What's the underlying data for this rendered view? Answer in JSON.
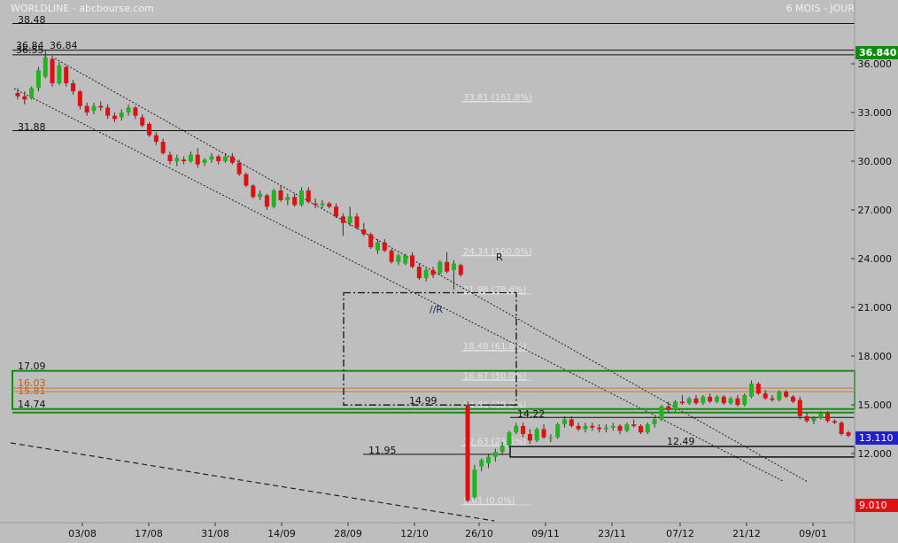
{
  "header": {
    "title": "WORLDLINE - abcbourse.com",
    "period": "6 MOIS - JOUR"
  },
  "colors": {
    "background": "#bebebe",
    "up": "#1fb51f",
    "down": "#e01010",
    "zone": "#148c14",
    "orange": "#d07a2a",
    "price_badge": "#0f8c0f",
    "low_badge": "#dd1111"
  },
  "chart_data": {
    "type": "candlestick",
    "ylim": [
      9.0,
      38.6
    ],
    "y_ticks": [
      "36.000",
      "33.000",
      "30.000",
      "27.000",
      "24.000",
      "21.000",
      "18.000",
      "15.000",
      "12.000"
    ],
    "x_ticks": [
      "03/08",
      "17/08",
      "31/08",
      "14/09",
      "28/09",
      "12/10",
      "26/10",
      "09/11",
      "23/11",
      "07/12",
      "21/12",
      "09/01"
    ],
    "last_price": "36.840",
    "current_price": "13.110",
    "low_price": "9.010",
    "levels": {
      "top": "38.48",
      "l1": "36.84",
      "l2": "36.55",
      "l3": "31.88",
      "zone_top": "17.09",
      "orange_1": "16.03",
      "orange_2": "15.81",
      "zone_bottom": "14.74",
      "h1499": "14.99",
      "h1422": "14.22",
      "h1249": "12.49",
      "h1195": "11.95"
    },
    "fib_labels": [
      "33.81 (161.8%)",
      "24.34 (100.0%)",
      "21.98 (78.6%)",
      "18.48 (61.8%)",
      "16.67 (50.0%)",
      "14.86 (38.2%)",
      "12.63 (23.6%)",
      "9.01 (0.0%)"
    ],
    "fib_values": [
      33.81,
      24.34,
      21.98,
      18.48,
      16.67,
      14.86,
      12.63,
      9.01
    ],
    "annotations": {
      "resistance": "R",
      "parallel": "//R"
    },
    "candles": [
      [
        34.2,
        34.5,
        33.8,
        34.0
      ],
      [
        34.0,
        34.3,
        33.5,
        33.8
      ],
      [
        33.9,
        34.6,
        33.8,
        34.5
      ],
      [
        34.5,
        35.8,
        34.3,
        35.6
      ],
      [
        35.2,
        36.8,
        35.1,
        36.4
      ],
      [
        36.3,
        36.5,
        34.6,
        34.8
      ],
      [
        34.8,
        36.1,
        34.7,
        35.9
      ],
      [
        35.8,
        35.9,
        34.6,
        34.8
      ],
      [
        34.8,
        35.0,
        34.1,
        34.3
      ],
      [
        34.3,
        34.4,
        33.2,
        33.4
      ],
      [
        33.4,
        33.6,
        32.8,
        33.0
      ],
      [
        33.1,
        33.6,
        32.9,
        33.4
      ],
      [
        33.4,
        33.7,
        33.1,
        33.3
      ],
      [
        33.3,
        33.5,
        32.6,
        32.8
      ],
      [
        32.8,
        33.0,
        32.4,
        32.6
      ],
      [
        32.7,
        33.2,
        32.5,
        33.0
      ],
      [
        33.0,
        33.5,
        32.8,
        33.3
      ],
      [
        33.3,
        33.4,
        32.6,
        32.8
      ],
      [
        32.7,
        32.9,
        32.1,
        32.2
      ],
      [
        32.3,
        32.4,
        31.5,
        31.6
      ],
      [
        31.6,
        31.8,
        31.0,
        31.2
      ],
      [
        31.2,
        31.4,
        30.4,
        30.5
      ],
      [
        30.4,
        30.6,
        29.8,
        30.0
      ],
      [
        30.0,
        30.4,
        29.7,
        30.2
      ],
      [
        30.1,
        30.3,
        29.8,
        30.0
      ],
      [
        30.0,
        30.6,
        29.9,
        30.4
      ],
      [
        30.4,
        30.8,
        29.6,
        29.8
      ],
      [
        29.9,
        30.2,
        29.7,
        30.1
      ],
      [
        30.1,
        30.5,
        29.9,
        30.3
      ],
      [
        30.3,
        30.4,
        29.8,
        30.0
      ],
      [
        30.0,
        30.5,
        29.9,
        30.3
      ],
      [
        30.3,
        30.5,
        29.8,
        29.9
      ],
      [
        29.9,
        30.1,
        29.1,
        29.2
      ],
      [
        29.2,
        29.3,
        28.4,
        28.5
      ],
      [
        28.5,
        28.6,
        27.7,
        27.8
      ],
      [
        27.8,
        28.2,
        27.6,
        28.0
      ],
      [
        27.9,
        28.0,
        27.0,
        27.2
      ],
      [
        27.2,
        28.3,
        27.1,
        28.2
      ],
      [
        28.2,
        28.5,
        27.5,
        27.6
      ],
      [
        27.6,
        28.0,
        27.3,
        27.8
      ],
      [
        27.8,
        28.0,
        27.2,
        27.3
      ],
      [
        27.3,
        28.4,
        27.2,
        28.2
      ],
      [
        28.2,
        28.4,
        27.4,
        27.5
      ],
      [
        27.4,
        27.7,
        27.1,
        27.3
      ],
      [
        27.3,
        27.6,
        27.1,
        27.4
      ],
      [
        27.4,
        27.5,
        27.1,
        27.2
      ],
      [
        27.2,
        27.4,
        26.5,
        26.6
      ],
      [
        26.6,
        26.8,
        25.4,
        26.2
      ],
      [
        26.2,
        27.2,
        26.0,
        26.6
      ],
      [
        26.6,
        26.8,
        25.8,
        25.9
      ],
      [
        25.8,
        26.2,
        25.4,
        25.5
      ],
      [
        25.5,
        25.6,
        24.6,
        24.7
      ],
      [
        24.5,
        25.2,
        24.3,
        25.0
      ],
      [
        25.0,
        25.2,
        24.4,
        24.5
      ],
      [
        24.5,
        24.6,
        23.7,
        23.8
      ],
      [
        23.8,
        24.3,
        23.6,
        24.2
      ],
      [
        23.7,
        24.3,
        23.6,
        24.2
      ],
      [
        24.2,
        24.4,
        23.4,
        23.5
      ],
      [
        23.5,
        23.7,
        22.7,
        22.8
      ],
      [
        22.8,
        23.4,
        22.6,
        23.3
      ],
      [
        23.3,
        23.5,
        22.8,
        23.0
      ],
      [
        23.1,
        23.9,
        23.0,
        23.8
      ],
      [
        23.8,
        24.4,
        23.1,
        23.2
      ],
      [
        23.3,
        23.9,
        22.1,
        23.7
      ],
      [
        23.6,
        23.7,
        22.9,
        23.0
      ],
      [
        15.0,
        15.2,
        9.0,
        9.1
      ],
      [
        9.3,
        11.3,
        9.2,
        11.0
      ],
      [
        11.2,
        11.7,
        10.9,
        11.6
      ],
      [
        11.4,
        12.0,
        11.1,
        11.8
      ],
      [
        11.8,
        12.3,
        11.5,
        12.1
      ],
      [
        12.1,
        12.7,
        11.9,
        12.5
      ],
      [
        12.5,
        13.4,
        12.4,
        13.3
      ],
      [
        13.3,
        13.9,
        13.2,
        13.7
      ],
      [
        13.7,
        13.9,
        13.0,
        13.2
      ],
      [
        13.2,
        13.5,
        12.6,
        12.8
      ],
      [
        12.8,
        13.6,
        12.7,
        13.5
      ],
      [
        13.5,
        13.8,
        12.9,
        13.0
      ],
      [
        13.0,
        13.2,
        12.7,
        13.0
      ],
      [
        13.0,
        13.9,
        12.9,
        13.8
      ],
      [
        13.8,
        14.3,
        13.6,
        14.1
      ],
      [
        14.1,
        14.3,
        13.6,
        13.7
      ],
      [
        13.7,
        13.9,
        13.4,
        13.5
      ],
      [
        13.5,
        13.9,
        13.3,
        13.7
      ],
      [
        13.7,
        13.9,
        13.4,
        13.6
      ],
      [
        13.6,
        13.8,
        13.3,
        13.5
      ],
      [
        13.5,
        13.8,
        13.3,
        13.6
      ],
      [
        13.6,
        13.9,
        13.4,
        13.7
      ],
      [
        13.7,
        13.8,
        13.2,
        13.4
      ],
      [
        13.4,
        13.9,
        13.3,
        13.8
      ],
      [
        13.8,
        14.1,
        13.6,
        13.7
      ],
      [
        13.7,
        13.8,
        13.2,
        13.3
      ],
      [
        13.3,
        13.9,
        13.2,
        13.8
      ],
      [
        13.8,
        14.2,
        13.6,
        14.1
      ],
      [
        14.1,
        15.0,
        14.0,
        14.9
      ],
      [
        14.9,
        15.2,
        14.5,
        14.7
      ],
      [
        14.7,
        15.3,
        14.6,
        15.2
      ],
      [
        15.2,
        15.6,
        15.0,
        15.1
      ],
      [
        15.1,
        15.5,
        15.0,
        15.4
      ],
      [
        15.4,
        15.6,
        15.0,
        15.1
      ],
      [
        15.1,
        15.6,
        15.0,
        15.5
      ],
      [
        15.5,
        15.7,
        15.1,
        15.2
      ],
      [
        15.2,
        15.6,
        15.1,
        15.5
      ],
      [
        15.5,
        15.6,
        15.0,
        15.1
      ],
      [
        15.1,
        15.5,
        15.0,
        15.4
      ],
      [
        15.4,
        15.6,
        14.9,
        15.0
      ],
      [
        15.0,
        15.7,
        14.9,
        15.6
      ],
      [
        15.5,
        16.5,
        15.4,
        16.3
      ],
      [
        16.3,
        16.4,
        15.6,
        15.7
      ],
      [
        15.7,
        15.9,
        15.3,
        15.4
      ],
      [
        15.4,
        15.6,
        15.2,
        15.3
      ],
      [
        15.3,
        15.9,
        15.2,
        15.8
      ],
      [
        15.8,
        15.9,
        15.4,
        15.5
      ],
      [
        15.5,
        15.6,
        15.1,
        15.2
      ],
      [
        15.3,
        15.5,
        14.1,
        14.3
      ],
      [
        14.3,
        14.5,
        13.9,
        14.0
      ],
      [
        14.0,
        14.3,
        13.8,
        14.2
      ],
      [
        14.2,
        14.6,
        14.1,
        14.5
      ],
      [
        14.5,
        14.6,
        13.9,
        14.0
      ],
      [
        14.0,
        14.1,
        13.8,
        13.9
      ],
      [
        13.9,
        14.0,
        13.1,
        13.2
      ],
      [
        13.3,
        13.4,
        13.0,
        13.1
      ]
    ]
  }
}
